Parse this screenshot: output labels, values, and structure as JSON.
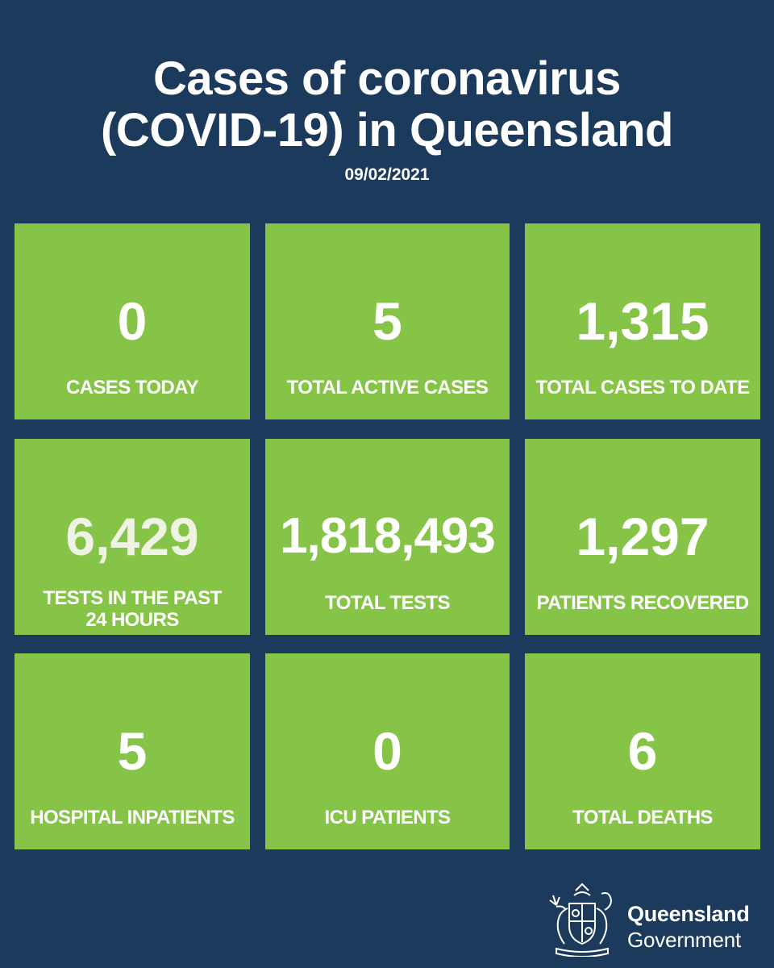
{
  "header": {
    "title_line1": "Cases of coronavirus",
    "title_line2": "(COVID-19) in Queensland",
    "date": "09/02/2021"
  },
  "colors": {
    "background": "#1c3a5b",
    "tile": "#86c448",
    "text": "#ffffff"
  },
  "tiles": [
    {
      "value": "0",
      "label": "CASES TODAY"
    },
    {
      "value": "5",
      "label": "TOTAL ACTIVE CASES"
    },
    {
      "value": "1,315",
      "label": "TOTAL CASES TO DATE"
    },
    {
      "value": "6,429",
      "label_line1": "TESTS IN THE PAST",
      "label_line2": "24 HOURS"
    },
    {
      "value": "1,818,493",
      "label": "TOTAL TESTS"
    },
    {
      "value": "1,297",
      "label": "PATIENTS RECOVERED"
    },
    {
      "value": "5",
      "label": "HOSPITAL INPATIENTS"
    },
    {
      "value": "0",
      "label": "ICU PATIENTS"
    },
    {
      "value": "6",
      "label": "TOTAL DEATHS"
    }
  ],
  "footer": {
    "logo_icon": "queensland-coat-of-arms-icon",
    "logo_line1": "Queensland",
    "logo_line2": "Government"
  }
}
